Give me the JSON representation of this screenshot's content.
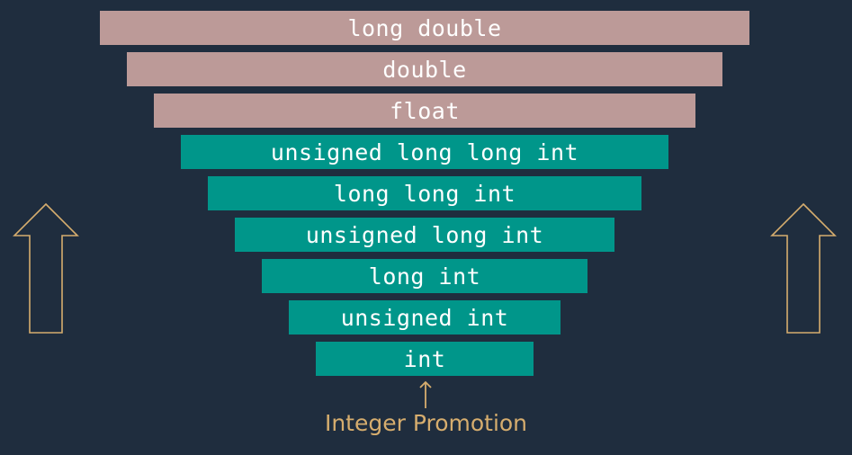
{
  "colors": {
    "background": "#1f2d3e",
    "floating_bar": "#bc9a98",
    "integer_bar": "#00968a",
    "accent": "#d6ad6e",
    "text": "#ffffff"
  },
  "hierarchy": [
    {
      "label": "long double",
      "kind": "floating"
    },
    {
      "label": "double",
      "kind": "floating"
    },
    {
      "label": "float",
      "kind": "floating"
    },
    {
      "label": "unsigned long long int",
      "kind": "integer"
    },
    {
      "label": "long long int",
      "kind": "integer"
    },
    {
      "label": "unsigned long int",
      "kind": "integer"
    },
    {
      "label": "long int",
      "kind": "integer"
    },
    {
      "label": "unsigned int",
      "kind": "integer"
    },
    {
      "label": "int",
      "kind": "integer"
    }
  ],
  "promotion": {
    "label": "Integer Promotion",
    "arrow_icon": "up-arrow-icon"
  },
  "side_arrows": {
    "icon": "outline-up-arrow-icon"
  }
}
